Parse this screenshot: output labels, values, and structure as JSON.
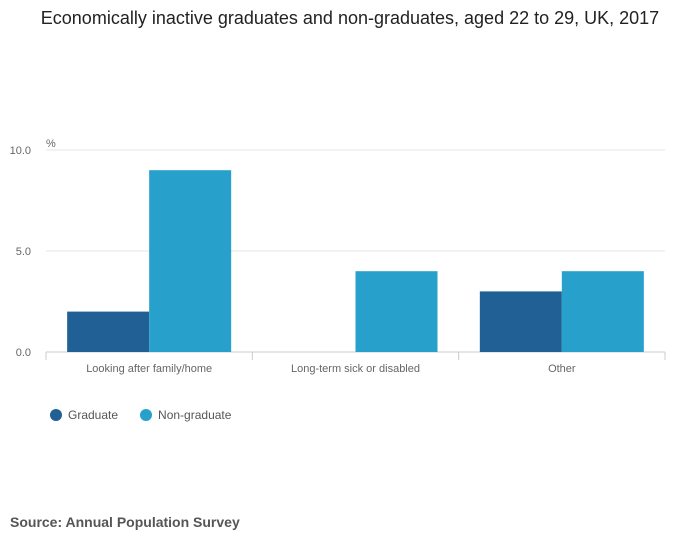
{
  "chart_data": {
    "type": "bar",
    "title": "Economically inactive graduates and non-graduates, aged 22 to 29, UK, 2017",
    "ylabel": "%",
    "xlabel": "",
    "categories": [
      "Looking after family/home",
      "Long-term sick or disabled",
      "Other"
    ],
    "series": [
      {
        "name": "Graduate",
        "values": [
          2.0,
          0.0,
          3.0
        ],
        "color": "#206095"
      },
      {
        "name": "Non-graduate",
        "values": [
          9.0,
          4.0,
          4.0
        ],
        "color": "#27a0cc"
      }
    ],
    "ylim": [
      0,
      10
    ],
    "yticks": [
      "0.0",
      "5.0",
      "10.0"
    ],
    "grid": true,
    "legend_position": "bottom-left"
  },
  "source": "Source: Annual Population Survey"
}
